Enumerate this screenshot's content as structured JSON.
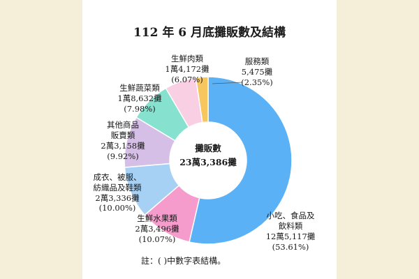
{
  "chart_data": {
    "type": "pie",
    "title": "112 年 6 月底攤販數及結構",
    "center_label": [
      "攤販數",
      "23萬3,386攤"
    ],
    "slices": [
      {
        "name": "小吃、食品及飲料類",
        "count_text": "12萬5,117攤",
        "percent_text": "(53.61%)",
        "value": 53.61,
        "color": "#5ab1f5"
      },
      {
        "name": "生鮮水果類",
        "count_text": "2萬3,496攤",
        "percent_text": "(10.07%)",
        "value": 10.07,
        "color": "#f59ccd"
      },
      {
        "name": "成衣、被服、紡織品及鞋類",
        "count_text": "2萬3,336攤",
        "percent_text": "(10.00%)",
        "value": 10.0,
        "color": "#a6d1f5"
      },
      {
        "name": "其他商品販賣類",
        "count_text": "2萬3,158攤",
        "percent_text": "(9.92%)",
        "value": 9.92,
        "color": "#d6bfe6"
      },
      {
        "name": "生鮮蔬菜類",
        "count_text": "1萬8,632攤",
        "percent_text": "(7.98%)",
        "value": 7.98,
        "color": "#86e2cf"
      },
      {
        "name": "生鮮肉類",
        "count_text": "1萬4,172攤",
        "percent_text": "(6.07%)",
        "value": 6.07,
        "color": "#f9cfe4"
      },
      {
        "name": "服務類",
        "count_text": "5,475攤",
        "percent_text": "(2.35%)",
        "value": 2.35,
        "color": "#f6c75f"
      }
    ]
  },
  "note": "註：( )中數字表結構。"
}
